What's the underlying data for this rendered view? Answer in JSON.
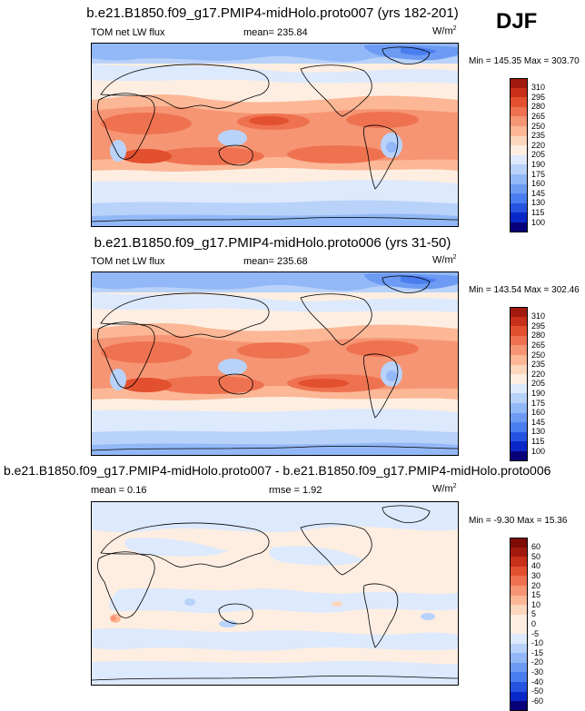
{
  "season": "DJF",
  "colors": {
    "absolute": [
      "#08007a",
      "#0a28c8",
      "#2653e0",
      "#4a7ef0",
      "#6d9bf3",
      "#93b8f7",
      "#b8d2fa",
      "#dde9fc",
      "#fdeee1",
      "#fcd6bd",
      "#fbb796",
      "#f69573",
      "#ef7250",
      "#e2502f",
      "#c8301a",
      "#a21a0e",
      "#7e0b06"
    ],
    "diff": [
      "#08007a",
      "#0a28c8",
      "#2653e0",
      "#4a7ef0",
      "#6d9bf3",
      "#93b8f7",
      "#b8d2fa",
      "#dde9fc",
      "#fdeee1",
      "#fcd6bd",
      "#fbb796",
      "#f69573",
      "#ef7250",
      "#e2502f",
      "#c8301a",
      "#a21a0e",
      "#7e0b06"
    ]
  },
  "chart_data": [
    {
      "type": "heatmap",
      "title": "b.e21.B1850.f09_g17.PMIP4-midHolo.proto007 (yrs 182-201)",
      "variable": "TOM net LW flux",
      "mean_label": "mean= 235.84",
      "units_base": "W/m",
      "units_exp": "2",
      "minmax": "Min = 145.35 Max = 303.70",
      "min": 145.35,
      "max": 303.7,
      "mean": 235.84,
      "levels": [
        "310",
        "295",
        "280",
        "265",
        "250",
        "235",
        "220",
        "205",
        "190",
        "175",
        "160",
        "145",
        "130",
        "115",
        "100"
      ]
    },
    {
      "type": "heatmap",
      "title": "b.e21.B1850.f09_g17.PMIP4-midHolo.proto006 (yrs 31-50)",
      "variable": "TOM net LW flux",
      "mean_label": "mean= 235.68",
      "units_base": "W/m",
      "units_exp": "2",
      "minmax": "Min = 143.54 Max = 302.46",
      "min": 143.54,
      "max": 302.46,
      "mean": 235.68,
      "levels": [
        "310",
        "295",
        "280",
        "265",
        "250",
        "235",
        "220",
        "205",
        "190",
        "175",
        "160",
        "145",
        "130",
        "115",
        "100"
      ]
    },
    {
      "type": "heatmap",
      "title": "b.e21.B1850.f09_g17.PMIP4-midHolo.proto007 - b.e21.B1850.f09_g17.PMIP4-midHolo.proto006",
      "mean_label": "mean =   0.16",
      "rmse_label": "rmse =   1.92",
      "units_base": "W/m",
      "units_exp": "2",
      "minmax": "Min =  -9.30 Max =  15.36",
      "min": -9.3,
      "max": 15.36,
      "mean": 0.16,
      "rmse": 1.92,
      "levels": [
        "60",
        "50",
        "40",
        "30",
        "20",
        "15",
        "10",
        "5",
        "0",
        "-5",
        "-10",
        "-15",
        "-20",
        "-30",
        "-40",
        "-50",
        "-60"
      ]
    }
  ]
}
